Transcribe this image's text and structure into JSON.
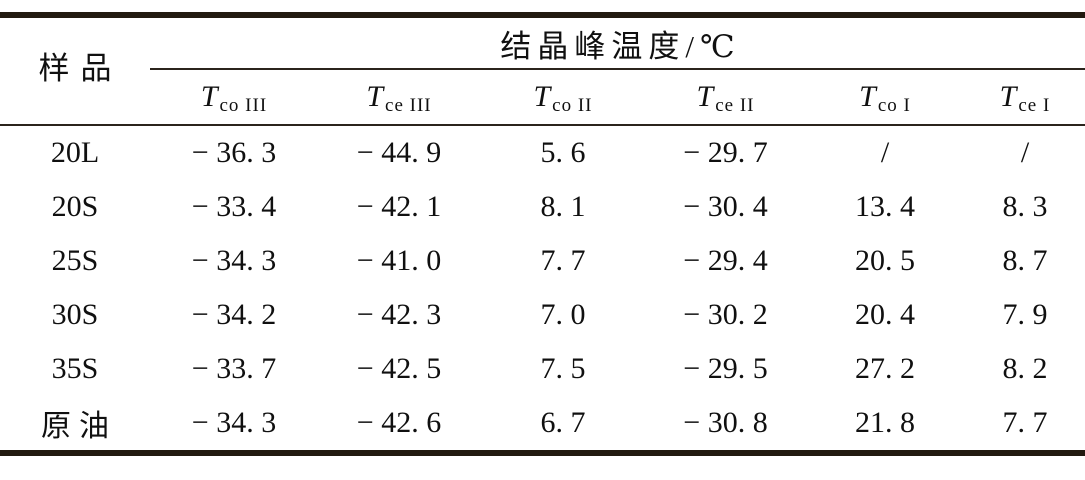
{
  "table": {
    "sample_header": "样品",
    "span_header": "结晶峰温度/℃",
    "columns": [
      {
        "base": "T",
        "sub": "co III"
      },
      {
        "base": "T",
        "sub": "ce III"
      },
      {
        "base": "T",
        "sub": "co II"
      },
      {
        "base": "T",
        "sub": "ce II"
      },
      {
        "base": "T",
        "sub": "co I"
      },
      {
        "base": "T",
        "sub": "ce I"
      }
    ],
    "rows": [
      {
        "sample": "20L",
        "cells": [
          "− 36. 3",
          "− 44. 9",
          "5. 6",
          "− 29. 7",
          "/",
          "/"
        ]
      },
      {
        "sample": "20S",
        "cells": [
          "− 33. 4",
          "− 42. 1",
          "8. 1",
          "− 30. 4",
          "13. 4",
          "8. 3"
        ]
      },
      {
        "sample": "25S",
        "cells": [
          "− 34. 3",
          "− 41. 0",
          "7. 7",
          "− 29. 4",
          "20. 5",
          "8. 7"
        ]
      },
      {
        "sample": "30S",
        "cells": [
          "− 34. 2",
          "− 42. 3",
          "7. 0",
          "− 30. 2",
          "20. 4",
          "7. 9"
        ]
      },
      {
        "sample": "35S",
        "cells": [
          "− 33. 7",
          "− 42. 5",
          "7. 5",
          "− 29. 5",
          "27. 2",
          "8. 2"
        ]
      },
      {
        "sample": "原油",
        "cells": [
          "− 34. 3",
          "− 42. 6",
          "6. 7",
          "− 30. 8",
          "21. 8",
          "7. 7"
        ]
      }
    ],
    "colors": {
      "text": "#101010",
      "thick_rule": "#221a10",
      "thin_rule": "#2b241c",
      "background": "#ffffff"
    }
  },
  "chart_data": {
    "type": "table",
    "title": "结晶峰温度/℃",
    "columns": [
      "样品",
      "T_co III",
      "T_ce III",
      "T_co II",
      "T_ce II",
      "T_co I",
      "T_ce I"
    ],
    "rows": [
      [
        "20L",
        -36.3,
        -44.9,
        5.6,
        -29.7,
        null,
        null
      ],
      [
        "20S",
        -33.4,
        -42.1,
        8.1,
        -30.4,
        13.4,
        8.3
      ],
      [
        "25S",
        -34.3,
        -41.0,
        7.7,
        -29.4,
        20.5,
        8.7
      ],
      [
        "30S",
        -34.2,
        -42.3,
        7.0,
        -30.2,
        20.4,
        7.9
      ],
      [
        "35S",
        -33.7,
        -42.5,
        7.5,
        -29.5,
        27.2,
        8.2
      ],
      [
        "原油",
        -34.3,
        -42.6,
        6.7,
        -30.8,
        21.8,
        7.7
      ]
    ],
    "missing_value_symbol": "/"
  }
}
